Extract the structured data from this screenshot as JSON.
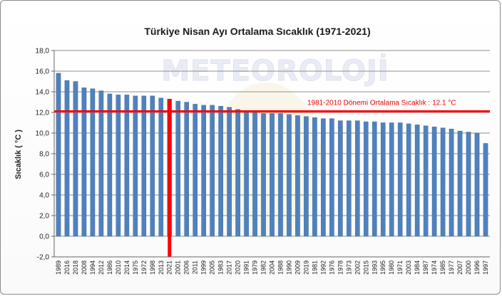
{
  "chart_data": {
    "type": "bar",
    "title": "Türkiye Nisan Ayı Ortalama Sıcaklık (1971-2021)",
    "ylabel": "Sıcaklık ( °C )",
    "xlabel": "",
    "ylim": [
      -2,
      18
    ],
    "yticks": [
      "-2,0",
      "0,0",
      "2,0",
      "4,0",
      "6,0",
      "8,0",
      "10,0",
      "12,0",
      "14,0",
      "16,0",
      "18,0"
    ],
    "grid": true,
    "categories": [
      "1989",
      "2016",
      "2018",
      "2008",
      "1994",
      "2012",
      "1986",
      "2010",
      "2014",
      "1975",
      "1972",
      "1998",
      "2013",
      "2021",
      "2001",
      "2006",
      "2011",
      "1999",
      "2005",
      "1983",
      "2017",
      "2020",
      "1991",
      "1979",
      "1982",
      "2004",
      "1988",
      "1990",
      "2009",
      "2019",
      "1981",
      "1992",
      "1976",
      "1978",
      "1973",
      "2002",
      "2015",
      "1993",
      "1995",
      "1980",
      "1971",
      "2003",
      "1984",
      "1987",
      "1974",
      "1985",
      "1977",
      "2007",
      "2000",
      "1996",
      "1997"
    ],
    "values": [
      15.8,
      15.1,
      15.0,
      14.4,
      14.3,
      14.1,
      13.8,
      13.7,
      13.7,
      13.6,
      13.6,
      13.6,
      13.4,
      13.3,
      13.1,
      13.0,
      12.8,
      12.7,
      12.7,
      12.6,
      12.5,
      12.3,
      12.1,
      12.0,
      11.9,
      11.9,
      11.9,
      11.8,
      11.7,
      11.6,
      11.5,
      11.4,
      11.4,
      11.2,
      11.2,
      11.2,
      11.1,
      11.1,
      11.0,
      11.0,
      11.0,
      10.9,
      10.8,
      10.7,
      10.6,
      10.5,
      10.4,
      10.2,
      10.1,
      10.0,
      9.0
    ],
    "highlight_category": "2021",
    "reference_line": {
      "value": 12.1,
      "label": "1981-2010  Dönemi  Ortalama Sıcaklık : 12.1  °C"
    },
    "colors": {
      "bar": "#4f81bd",
      "bar_edge": "#3a68a0",
      "highlight": "#ff0000",
      "reference": "#ff0000",
      "grid": "#8e8e8e"
    }
  },
  "watermark": {
    "text": "METEOROLOJİ"
  }
}
